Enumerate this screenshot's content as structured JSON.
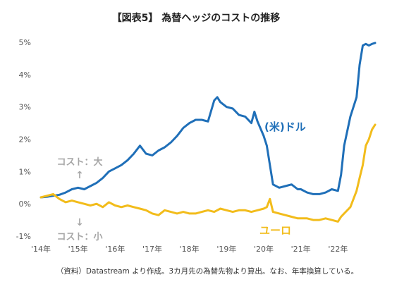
{
  "chart_data": {
    "type": "line",
    "title": "【図表5】 為替ヘッジのコストの推移",
    "yunit": "%",
    "ylim": [
      -1.1,
      5.3
    ],
    "yticks": [
      5,
      4,
      3,
      2,
      1,
      0,
      -1
    ],
    "ytick_labels": [
      "5%",
      "4%",
      "3%",
      "2%",
      "1%",
      "0%",
      "-1%"
    ],
    "xlim": [
      2014.0,
      2023.0
    ],
    "xticks": [
      2014,
      2015,
      2016,
      2017,
      2018,
      2019,
      2020,
      2021,
      2022
    ],
    "xtick_labels": [
      "'14年",
      "'15年",
      "'16年",
      "'17年",
      "'18年",
      "'19年",
      "'20年",
      "'21年",
      "'22年"
    ],
    "colors": {
      "usd": "#1f6fb8",
      "eur": "#f2bc1b",
      "axis_text": "#555555",
      "annotation": "#a6a6a6"
    },
    "annotations": {
      "cost_up": "コスト：大",
      "cost_down": "コスト：小",
      "arrow_up": "↑",
      "arrow_down": "↓"
    },
    "source_note": "（資料）Datastream より作成。3カ月先の為替先物より算出。なお、年率換算している。",
    "series": [
      {
        "name": "(米)ドル",
        "color": "#1f6fb8",
        "x": [
          2014.0,
          2014.167,
          2014.333,
          2014.5,
          2014.667,
          2014.833,
          2015.0,
          2015.167,
          2015.333,
          2015.5,
          2015.667,
          2015.833,
          2016.0,
          2016.167,
          2016.333,
          2016.5,
          2016.667,
          2016.833,
          2017.0,
          2017.167,
          2017.333,
          2017.5,
          2017.667,
          2017.833,
          2018.0,
          2018.167,
          2018.333,
          2018.5,
          2018.667,
          2018.75,
          2018.833,
          2019.0,
          2019.167,
          2019.333,
          2019.5,
          2019.667,
          2019.75,
          2019.833,
          2020.0,
          2020.083,
          2020.167,
          2020.25,
          2020.417,
          2020.583,
          2020.75,
          2020.917,
          2021.0,
          2021.167,
          2021.333,
          2021.5,
          2021.667,
          2021.833,
          2022.0,
          2022.083,
          2022.167,
          2022.333,
          2022.5,
          2022.583,
          2022.667,
          2022.75,
          2022.833,
          2022.917,
          2023.0
        ],
        "values": [
          0.2,
          0.22,
          0.25,
          0.28,
          0.35,
          0.45,
          0.5,
          0.45,
          0.55,
          0.65,
          0.8,
          1.0,
          1.1,
          1.2,
          1.35,
          1.55,
          1.8,
          1.55,
          1.5,
          1.65,
          1.75,
          1.9,
          2.1,
          2.35,
          2.5,
          2.6,
          2.6,
          2.55,
          3.2,
          3.3,
          3.15,
          3.0,
          2.95,
          2.75,
          2.7,
          2.5,
          2.85,
          2.55,
          2.1,
          1.8,
          1.2,
          0.6,
          0.5,
          0.55,
          0.6,
          0.45,
          0.45,
          0.35,
          0.3,
          0.3,
          0.35,
          0.45,
          0.4,
          0.9,
          1.8,
          2.7,
          3.3,
          4.3,
          4.9,
          4.95,
          4.9,
          4.95,
          4.98
        ]
      },
      {
        "name": "ユーロ",
        "color": "#f2bc1b",
        "x": [
          2014.0,
          2014.167,
          2014.333,
          2014.5,
          2014.667,
          2014.833,
          2015.0,
          2015.167,
          2015.333,
          2015.5,
          2015.667,
          2015.833,
          2016.0,
          2016.167,
          2016.333,
          2016.5,
          2016.667,
          2016.833,
          2017.0,
          2017.167,
          2017.333,
          2017.5,
          2017.667,
          2017.833,
          2018.0,
          2018.167,
          2018.333,
          2018.5,
          2018.667,
          2018.833,
          2019.0,
          2019.167,
          2019.333,
          2019.5,
          2019.667,
          2019.833,
          2020.0,
          2020.083,
          2020.167,
          2020.25,
          2020.417,
          2020.583,
          2020.75,
          2020.917,
          2021.0,
          2021.167,
          2021.333,
          2021.5,
          2021.667,
          2021.833,
          2022.0,
          2022.083,
          2022.167,
          2022.333,
          2022.5,
          2022.583,
          2022.667,
          2022.75,
          2022.833,
          2022.917,
          2023.0
        ],
        "values": [
          0.2,
          0.25,
          0.3,
          0.15,
          0.05,
          0.1,
          0.05,
          0.0,
          -0.05,
          0.0,
          -0.1,
          0.05,
          -0.05,
          -0.1,
          -0.05,
          -0.1,
          -0.15,
          -0.2,
          -0.3,
          -0.35,
          -0.2,
          -0.25,
          -0.3,
          -0.25,
          -0.3,
          -0.3,
          -0.25,
          -0.2,
          -0.25,
          -0.15,
          -0.2,
          -0.25,
          -0.2,
          -0.2,
          -0.25,
          -0.2,
          -0.15,
          -0.1,
          0.15,
          -0.25,
          -0.3,
          -0.35,
          -0.4,
          -0.45,
          -0.45,
          -0.45,
          -0.5,
          -0.5,
          -0.45,
          -0.5,
          -0.55,
          -0.4,
          -0.3,
          -0.1,
          0.4,
          0.8,
          1.2,
          1.8,
          2.0,
          2.3,
          2.45
        ]
      }
    ]
  }
}
